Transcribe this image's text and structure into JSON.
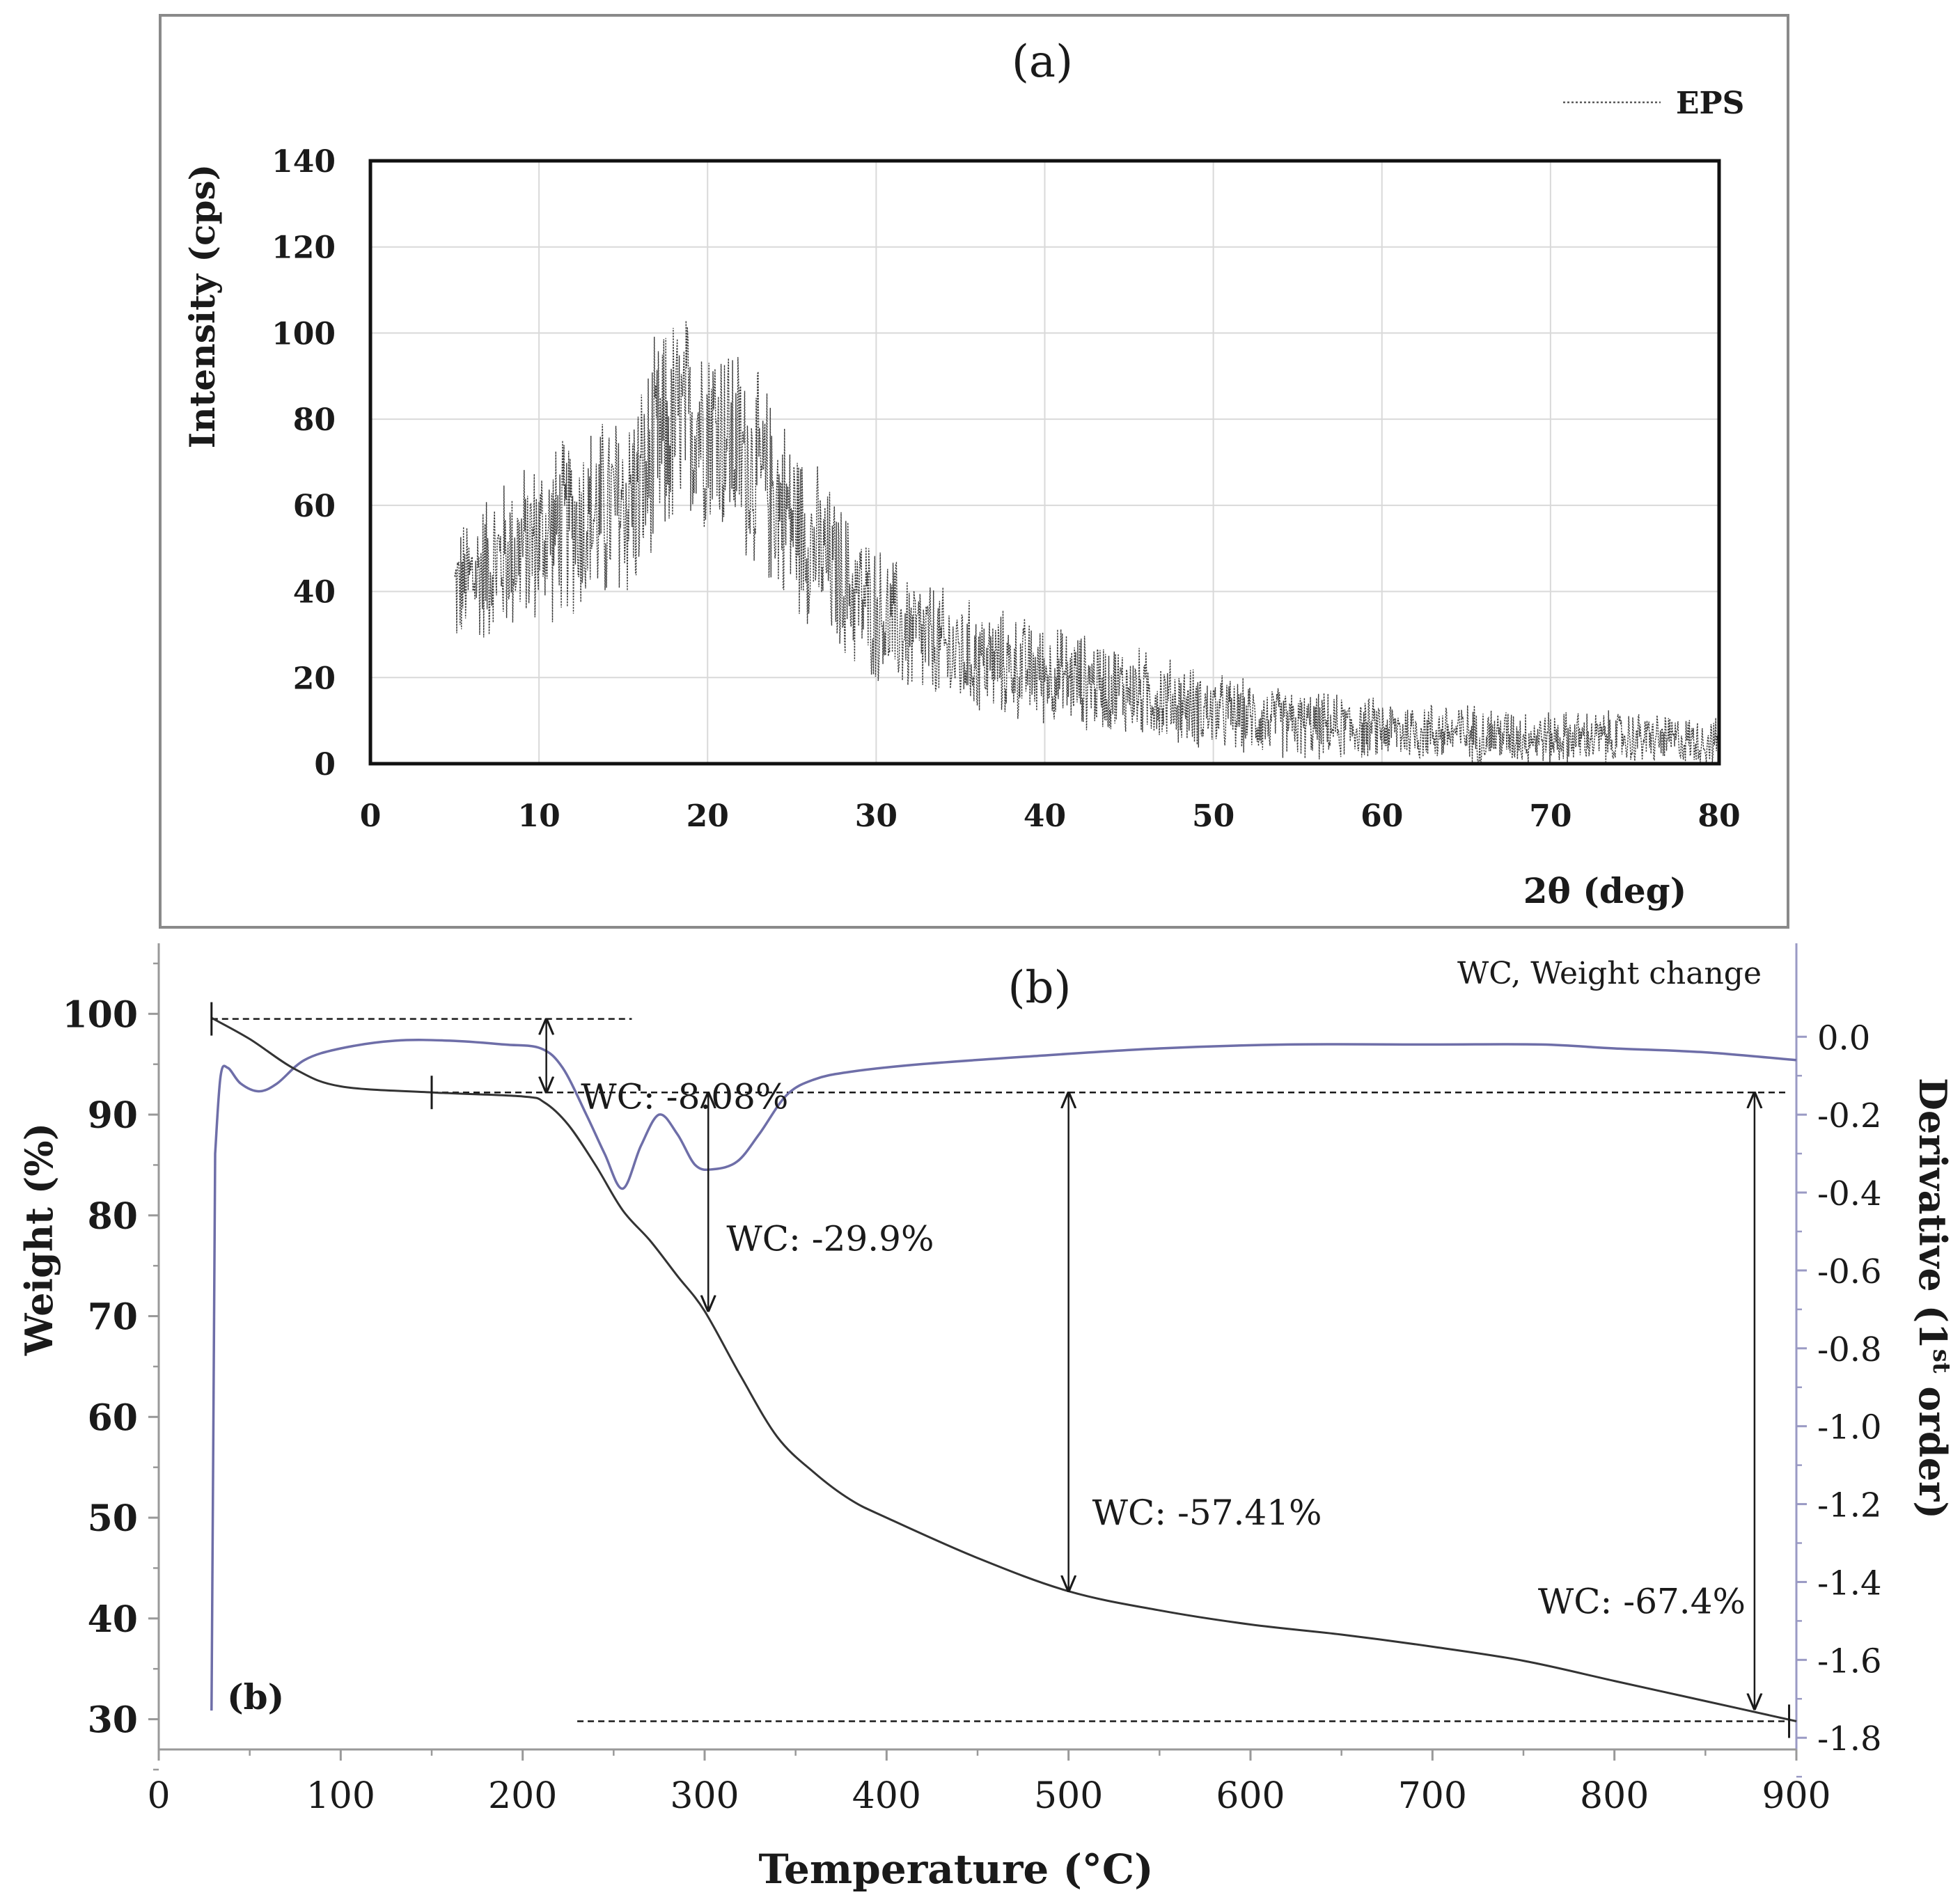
{
  "chart_data": [
    {
      "type": "line",
      "panel_label": "(a)",
      "title": "",
      "xlabel": "2θ (deg)",
      "ylabel": "Intensity (cps)",
      "xlim": [
        0,
        80
      ],
      "ylim": [
        0,
        140
      ],
      "x_ticks": [
        "0",
        "10",
        "20",
        "30",
        "40",
        "50",
        "60",
        "70",
        "80"
      ],
      "y_ticks": [
        "0",
        "20",
        "40",
        "60",
        "80",
        "100",
        "120",
        "140"
      ],
      "grid": true,
      "legend": {
        "position": "top-right",
        "entries": [
          "EPS"
        ]
      },
      "series": [
        {
          "name": "EPS",
          "style": "dotted noisy trace",
          "color": "#3a3a3a",
          "x_range": [
            5,
            80
          ],
          "envelope_x": [
            5,
            7,
            10,
            12,
            14,
            16,
            17,
            18,
            19,
            20,
            21,
            22,
            24,
            26,
            28,
            30,
            32,
            35,
            40,
            45,
            50,
            55,
            60,
            65,
            70,
            75,
            80
          ],
          "envelope_mean": [
            40,
            46,
            52,
            56,
            58,
            63,
            72,
            78,
            80,
            80,
            77,
            72,
            62,
            52,
            42,
            35,
            30,
            25,
            21,
            17,
            12,
            9,
            8,
            7,
            6,
            6,
            5
          ],
          "envelope_spread": [
            16,
            20,
            22,
            24,
            26,
            28,
            30,
            30,
            28,
            28,
            28,
            27,
            25,
            22,
            20,
            18,
            17,
            15,
            13,
            12,
            10,
            9,
            8,
            8,
            7,
            7,
            6
          ]
        }
      ]
    },
    {
      "type": "line",
      "panel_label": "(b)",
      "inner_label": "(b)",
      "title": "",
      "legend_note": "WC, Weight change",
      "xlabel": "Temperature (°C)",
      "ylabel": "Weight (%)",
      "ylabel_right_main": "Derivative (1",
      "ylabel_right_sup": "st",
      "ylabel_right_tail": " order)",
      "xlim": [
        0,
        900
      ],
      "ylim": [
        27,
        107
      ],
      "y2lim": [
        -1.83,
        0.24
      ],
      "x_ticks": [
        "0",
        "100",
        "200",
        "300",
        "400",
        "500",
        "600",
        "700",
        "800",
        "900"
      ],
      "y_ticks": [
        "30",
        "40",
        "50",
        "60",
        "70",
        "80",
        "90",
        "100"
      ],
      "y2_ticks": [
        "0.0",
        "-0.2",
        "-0.4",
        "-0.6",
        "-0.8",
        "-1.0",
        "-1.2",
        "-1.4",
        "-1.6",
        "-1.8"
      ],
      "grid": false,
      "series": [
        {
          "name": "Weight",
          "axis": "left",
          "color": "#333333",
          "x": [
            29,
            50,
            75,
            100,
            150,
            200,
            212,
            225,
            240,
            255,
            270,
            285,
            300,
            320,
            340,
            360,
            380,
            400,
            450,
            500,
            550,
            600,
            650,
            700,
            750,
            800,
            850,
            900
          ],
          "y": [
            99.6,
            97.5,
            94.5,
            92.8,
            92.2,
            91.8,
            91.2,
            89,
            85,
            80.5,
            77.5,
            74,
            70.5,
            64,
            58,
            54.5,
            51.8,
            50,
            46,
            42.7,
            40.8,
            39.4,
            38.4,
            37.2,
            35.8,
            33.8,
            31.8,
            29.8
          ]
        },
        {
          "name": "Derivative",
          "axis": "right",
          "color": "#6e6ea8",
          "x": [
            29,
            31,
            34,
            38,
            45,
            55,
            65,
            80,
            100,
            130,
            160,
            190,
            210,
            222,
            235,
            245,
            255,
            265,
            275,
            285,
            295,
            305,
            318,
            330,
            345,
            360,
            380,
            420,
            480,
            550,
            620,
            700,
            760,
            800,
            850,
            900
          ],
          "y": [
            -1.73,
            -0.3,
            -0.1,
            -0.08,
            -0.12,
            -0.14,
            -0.12,
            -0.06,
            -0.03,
            -0.01,
            -0.01,
            -0.02,
            -0.03,
            -0.08,
            -0.2,
            -0.3,
            -0.39,
            -0.28,
            -0.2,
            -0.25,
            -0.33,
            -0.34,
            -0.32,
            -0.25,
            -0.15,
            -0.11,
            -0.09,
            -0.07,
            -0.05,
            -0.03,
            -0.02,
            -0.02,
            -0.02,
            -0.03,
            -0.04,
            -0.06
          ]
        }
      ],
      "annotations": [
        {
          "text": "WC: -8.08%",
          "x": 232,
          "y": 90.6,
          "arrow_x": 213,
          "arrow_from": 99.5,
          "arrow_to": 92.2
        },
        {
          "text": "WC: -29.9%",
          "x": 312,
          "y": 76.5,
          "arrow_x": 302,
          "arrow_from": 92.2,
          "arrow_to": 70.5
        },
        {
          "text": "WC: -57.41%",
          "x": 513,
          "y": 49.3,
          "arrow_x": 500,
          "arrow_from": 92.2,
          "arrow_to": 42.7
        },
        {
          "text": "WC: -67.4%",
          "x": 758,
          "y": 40.5,
          "arrow_x": 877,
          "arrow_from": 92.2,
          "arrow_to": 31.0
        }
      ],
      "reference_lines": [
        {
          "y": 99.5,
          "x_from": 29,
          "x_to": 260
        },
        {
          "y": 92.2,
          "x_from": 150,
          "x_to": 896
        },
        {
          "y": 29.8,
          "x_from": 230,
          "x_to": 896
        }
      ],
      "step_marks": [
        {
          "x": 29,
          "y": 99.5
        },
        {
          "x": 150,
          "y": 92.2
        },
        {
          "x": 896,
          "y": 29.8
        }
      ]
    }
  ]
}
